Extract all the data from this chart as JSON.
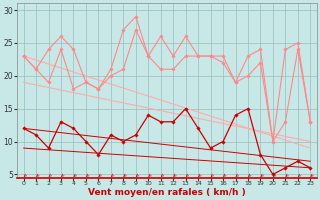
{
  "xlabel": "Vent moyen/en rafales ( km/h )",
  "bg_color": "#c8e8e8",
  "grid_color": "#9bbcbc",
  "xlim": [
    -0.5,
    23.5
  ],
  "ylim": [
    4.5,
    31
  ],
  "yticks": [
    5,
    10,
    15,
    20,
    25,
    30
  ],
  "xticks": [
    0,
    1,
    2,
    3,
    4,
    5,
    6,
    7,
    8,
    9,
    10,
    11,
    12,
    13,
    14,
    15,
    16,
    17,
    18,
    19,
    20,
    21,
    22,
    23
  ],
  "series": [
    {
      "x": [
        0,
        1,
        2,
        3,
        4,
        5,
        6,
        7,
        8,
        9,
        10,
        11,
        12,
        13,
        14,
        15,
        16,
        17,
        18,
        19,
        20,
        21,
        22,
        23
      ],
      "y": [
        23,
        21,
        24,
        26,
        24,
        19,
        18,
        21,
        27,
        29,
        23,
        26,
        23,
        26,
        23,
        23,
        23,
        19,
        23,
        24,
        10,
        24,
        25,
        13
      ],
      "color": "#ff8888",
      "lw": 0.8,
      "marker": "D",
      "ms": 1.8
    },
    {
      "x": [
        0,
        1,
        2,
        3,
        4,
        5,
        6,
        7,
        8,
        9,
        10,
        11,
        12,
        13,
        14,
        15,
        16,
        17,
        18,
        19,
        20,
        21,
        22,
        23
      ],
      "y": [
        23,
        21,
        19,
        24,
        18,
        19,
        18,
        20,
        21,
        27,
        23,
        21,
        21,
        23,
        23,
        23,
        22,
        19,
        20,
        22,
        10,
        13,
        24,
        13
      ],
      "color": "#ff8888",
      "lw": 0.8,
      "marker": "D",
      "ms": 1.8
    },
    {
      "x": [
        0,
        23
      ],
      "y": [
        23,
        9
      ],
      "color": "#ffaaaa",
      "lw": 0.8,
      "marker": null,
      "ms": 0
    },
    {
      "x": [
        0,
        23
      ],
      "y": [
        19,
        10
      ],
      "color": "#ffaaaa",
      "lw": 0.8,
      "marker": null,
      "ms": 0
    },
    {
      "x": [
        0,
        1,
        2,
        3,
        4,
        5,
        6,
        7,
        8,
        9,
        10,
        11,
        12,
        13,
        14,
        15,
        16,
        17,
        18,
        19,
        20,
        21,
        22,
        23
      ],
      "y": [
        12,
        11,
        9,
        13,
        12,
        10,
        8,
        11,
        10,
        11,
        14,
        13,
        13,
        15,
        12,
        9,
        10,
        14,
        15,
        8,
        5,
        6,
        7,
        6
      ],
      "color": "#cc0000",
      "lw": 0.9,
      "marker": "D",
      "ms": 1.8
    },
    {
      "x": [
        0,
        23
      ],
      "y": [
        12,
        7
      ],
      "color": "#cc0000",
      "lw": 0.7,
      "marker": null,
      "ms": 0
    },
    {
      "x": [
        0,
        23
      ],
      "y": [
        9,
        6
      ],
      "color": "#cc0000",
      "lw": 0.7,
      "marker": null,
      "ms": 0
    }
  ],
  "arrow_color": "#cc0000",
  "xlabel_color": "#cc0000",
  "xlabel_fontsize": 6.5,
  "tick_fontsize": 4.5,
  "ytick_fontsize": 5.5
}
